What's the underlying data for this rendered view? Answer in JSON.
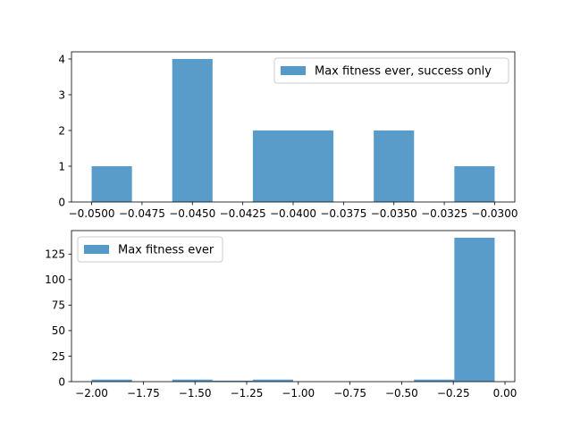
{
  "chart_data": [
    {
      "type": "bar",
      "subtype": "histogram",
      "series": [
        {
          "name": "Max fitness ever, success only",
          "color": "#5599c7",
          "bins": [
            {
              "x0": -0.05,
              "x1": -0.048,
              "count": 1
            },
            {
              "x0": -0.048,
              "x1": -0.046,
              "count": 0
            },
            {
              "x0": -0.046,
              "x1": -0.044,
              "count": 4
            },
            {
              "x0": -0.044,
              "x1": -0.042,
              "count": 0
            },
            {
              "x0": -0.042,
              "x1": -0.04,
              "count": 2
            },
            {
              "x0": -0.04,
              "x1": -0.038,
              "count": 2
            },
            {
              "x0": -0.038,
              "x1": -0.036,
              "count": 0
            },
            {
              "x0": -0.036,
              "x1": -0.034,
              "count": 2
            },
            {
              "x0": -0.034,
              "x1": -0.032,
              "count": 0
            },
            {
              "x0": -0.032,
              "x1": -0.03,
              "count": 1
            }
          ]
        }
      ],
      "xlim": [
        -0.051,
        -0.029
      ],
      "ylim": [
        0,
        4.2
      ],
      "xticks": [
        -0.05,
        -0.0475,
        -0.045,
        -0.0425,
        -0.04,
        -0.0375,
        -0.035,
        -0.0325,
        -0.03
      ],
      "xticklabels": [
        "−0.0500",
        "−0.0475",
        "−0.0450",
        "−0.0425",
        "−0.0400",
        "−0.0375",
        "−0.0350",
        "−0.0325",
        "−0.0300"
      ],
      "yticks": [
        0,
        1,
        2,
        3,
        4
      ],
      "yticklabels": [
        "0",
        "1",
        "2",
        "3",
        "4"
      ],
      "legend_position": "upper right",
      "grid": false
    },
    {
      "type": "bar",
      "subtype": "histogram",
      "series": [
        {
          "name": "Max fitness ever",
          "color": "#5599c7",
          "bins": [
            {
              "x0": -2.0,
              "x1": -1.805,
              "count": 2
            },
            {
              "x0": -1.805,
              "x1": -1.61,
              "count": 0
            },
            {
              "x0": -1.61,
              "x1": -1.415,
              "count": 2
            },
            {
              "x0": -1.415,
              "x1": -1.22,
              "count": 1
            },
            {
              "x0": -1.22,
              "x1": -1.025,
              "count": 2
            },
            {
              "x0": -1.025,
              "x1": -0.83,
              "count": 0
            },
            {
              "x0": -0.83,
              "x1": -0.635,
              "count": 0
            },
            {
              "x0": -0.635,
              "x1": -0.44,
              "count": 0
            },
            {
              "x0": -0.44,
              "x1": -0.245,
              "count": 2
            },
            {
              "x0": -0.245,
              "x1": -0.05,
              "count": 141
            }
          ]
        }
      ],
      "xlim": [
        -2.0975,
        0.0475
      ],
      "ylim": [
        0,
        148
      ],
      "xticks": [
        -2.0,
        -1.75,
        -1.5,
        -1.25,
        -1.0,
        -0.75,
        -0.5,
        -0.25,
        0.0
      ],
      "xticklabels": [
        "−2.00",
        "−1.75",
        "−1.50",
        "−1.25",
        "−1.00",
        "−0.75",
        "−0.50",
        "−0.25",
        "0.00"
      ],
      "yticks": [
        0,
        25,
        50,
        75,
        100,
        125
      ],
      "yticklabels": [
        "0",
        "25",
        "50",
        "75",
        "100",
        "125"
      ],
      "legend_position": "upper left",
      "grid": false
    }
  ]
}
